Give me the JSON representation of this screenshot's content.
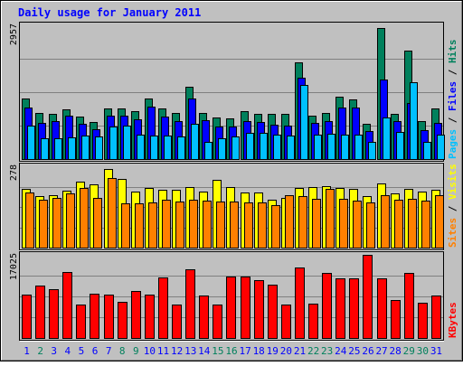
{
  "title": "Daily usage for January 2011",
  "colors": {
    "background": "#c0c0c0",
    "title": "#0000ff",
    "hits": "#00805c",
    "files": "#0000ff",
    "pages": "#00c0ff",
    "visits": "#ffff00",
    "sites": "#ff8000",
    "kbytes": "#ff0000",
    "grid": "#808080",
    "weekday_label": "#0000ff",
    "weekend_label": "#00805c"
  },
  "chart_data": [
    {
      "type": "bar",
      "name": "hits-files-pages",
      "ymax_label": "2957",
      "ylim": [
        0,
        2957
      ],
      "legend": [
        {
          "key": "pages",
          "label": "Pages"
        },
        {
          "key": "files",
          "label": "Files"
        },
        {
          "key": "hits",
          "label": "Hits"
        }
      ],
      "sep": "/",
      "categories": [
        "1",
        "2",
        "3",
        "4",
        "5",
        "6",
        "7",
        "8",
        "9",
        "10",
        "11",
        "12",
        "13",
        "14",
        "15",
        "16",
        "17",
        "18",
        "19",
        "20",
        "21",
        "22",
        "23",
        "24",
        "25",
        "26",
        "27",
        "28",
        "29",
        "30",
        "31"
      ],
      "weekend": [
        false,
        true,
        false,
        false,
        false,
        false,
        false,
        true,
        true,
        false,
        false,
        false,
        false,
        false,
        true,
        true,
        false,
        false,
        false,
        false,
        false,
        true,
        true,
        false,
        false,
        false,
        false,
        false,
        true,
        true,
        false
      ],
      "series": [
        {
          "key": "hits",
          "values": [
            1340,
            1010,
            990,
            1100,
            940,
            810,
            1110,
            1110,
            1060,
            1340,
            1120,
            1020,
            1590,
            1020,
            910,
            900,
            1050,
            990,
            990,
            1000,
            2140,
            950,
            1020,
            1380,
            1320,
            780,
            2900,
            1000,
            2400,
            840,
            1110
          ]
        },
        {
          "key": "files",
          "values": [
            1130,
            800,
            830,
            960,
            780,
            650,
            950,
            960,
            880,
            1150,
            940,
            830,
            1340,
            860,
            720,
            710,
            840,
            820,
            750,
            740,
            1800,
            790,
            840,
            1140,
            1140,
            620,
            1750,
            830,
            1240,
            640,
            790
          ]
        },
        {
          "key": "pages",
          "values": [
            740,
            460,
            460,
            480,
            520,
            490,
            720,
            740,
            530,
            510,
            520,
            490,
            770,
            380,
            460,
            490,
            570,
            570,
            530,
            520,
            1630,
            540,
            550,
            530,
            530,
            380,
            920,
            590,
            1690,
            370,
            540
          ]
        }
      ]
    },
    {
      "type": "bar",
      "name": "visits-sites",
      "ymax_label": "278",
      "ylim": [
        0,
        278
      ],
      "legend": [
        {
          "key": "sites",
          "label": "Sites"
        },
        {
          "key": "visits",
          "label": "Visits"
        }
      ],
      "sep": "/",
      "series": [
        {
          "key": "visits",
          "values": [
            200,
            175,
            180,
            195,
            225,
            215,
            268,
            235,
            190,
            205,
            198,
            197,
            207,
            190,
            231,
            207,
            189,
            189,
            165,
            171,
            203,
            207,
            211,
            203,
            202,
            177,
            220,
            185,
            202,
            193,
            198
          ]
        },
        {
          "key": "sites",
          "values": [
            188,
            165,
            170,
            186,
            203,
            170,
            238,
            150,
            152,
            155,
            163,
            158,
            163,
            160,
            159,
            159,
            153,
            155,
            145,
            179,
            175,
            168,
            202,
            168,
            160,
            153,
            180,
            165,
            168,
            162,
            179
          ]
        }
      ]
    },
    {
      "type": "bar",
      "name": "kbytes",
      "ymax_label": "17025",
      "ylim": [
        0,
        17025
      ],
      "legend": [
        {
          "key": "kbytes",
          "label": "KBytes"
        }
      ],
      "sep": "",
      "series": [
        {
          "key": "kbytes",
          "values": [
            8900,
            10650,
            9950,
            13600,
            6800,
            9100,
            8800,
            7450,
            9700,
            8900,
            12400,
            6800,
            14000,
            8700,
            6800,
            12500,
            12500,
            11900,
            10850,
            6900,
            14450,
            7100,
            13350,
            12300,
            12300,
            17025,
            12300,
            7750,
            13350,
            7150,
            8700
          ]
        }
      ]
    }
  ]
}
